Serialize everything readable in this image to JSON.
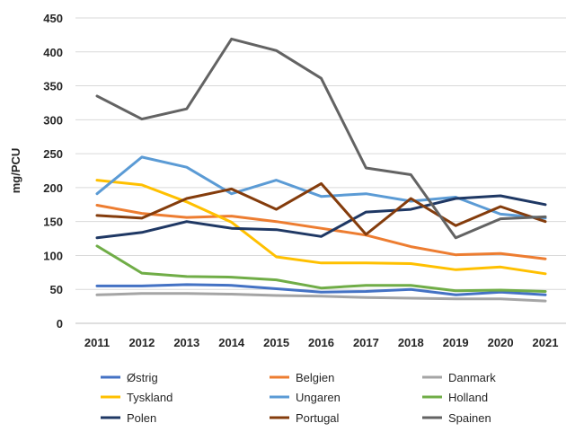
{
  "chart_data": {
    "type": "line",
    "title": "",
    "xlabel": "",
    "ylabel": "mg/PCU",
    "ylim": [
      0,
      450
    ],
    "yticks": [
      0,
      50,
      100,
      150,
      200,
      250,
      300,
      350,
      400,
      450
    ],
    "grid": "horizontal",
    "legend_position": "bottom",
    "x": [
      "2011",
      "2012",
      "2013",
      "2014",
      "2015",
      "2016",
      "2017",
      "2018",
      "2019",
      "2020",
      "2021"
    ],
    "series": [
      {
        "name": "Østrig",
        "color": "#4472C4",
        "values": [
          55,
          55,
          57,
          56,
          51,
          46,
          47,
          50,
          42,
          46,
          42
        ]
      },
      {
        "name": "Belgien",
        "color": "#ED7D31",
        "values": [
          174,
          162,
          156,
          158,
          150,
          140,
          130,
          113,
          101,
          103,
          95
        ]
      },
      {
        "name": "Danmark",
        "color": "#A5A5A5",
        "values": [
          42,
          44,
          44,
          43,
          41,
          40,
          38,
          37,
          36,
          36,
          33
        ]
      },
      {
        "name": "Tyskland",
        "color": "#FFC000",
        "values": [
          211,
          204,
          179,
          149,
          98,
          89,
          89,
          88,
          79,
          83,
          73
        ]
      },
      {
        "name": "Ungaren",
        "color": "#5B9BD5",
        "values": [
          191,
          245,
          230,
          191,
          211,
          187,
          191,
          180,
          186,
          161,
          155
        ]
      },
      {
        "name": "Holland",
        "color": "#70AD47",
        "values": [
          114,
          74,
          69,
          68,
          64,
          52,
          56,
          56,
          48,
          49,
          47
        ]
      },
      {
        "name": "Polen",
        "color": "#1F3864",
        "values": [
          126,
          134,
          150,
          140,
          138,
          128,
          164,
          168,
          184,
          188,
          175
        ]
      },
      {
        "name": "Portugal",
        "color": "#843C0C",
        "values": [
          159,
          155,
          184,
          198,
          168,
          206,
          131,
          184,
          144,
          172,
          150
        ]
      },
      {
        "name": "Spainen",
        "color": "#636363",
        "values": [
          335,
          301,
          316,
          419,
          402,
          361,
          229,
          219,
          126,
          154,
          157
        ]
      }
    ]
  }
}
